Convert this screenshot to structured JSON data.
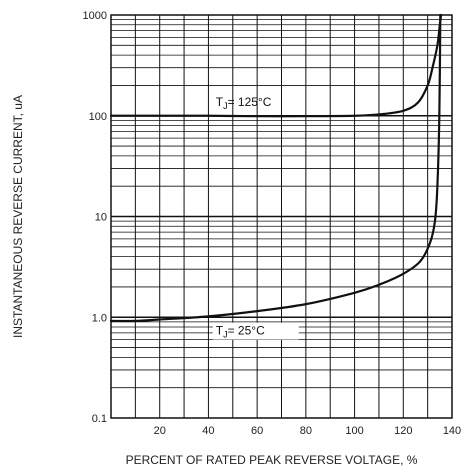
{
  "chart_data": {
    "type": "line",
    "xlabel": "PERCENT OF RATED PEAK REVERSE VOLTAGE, %",
    "ylabel": "INSTANTANEOUS REVERSE CURRENT, uA",
    "xlim": [
      0,
      140
    ],
    "ylim": [
      0.1,
      1000
    ],
    "yscale": "log",
    "grid": true,
    "x_ticks": [
      "20",
      "40",
      "60",
      "80",
      "100",
      "120",
      "140"
    ],
    "y_ticks": [
      "0.1",
      "1.0",
      "10",
      "100",
      "1000"
    ],
    "annotations": [
      {
        "prefix": "T",
        "sub": "J",
        "text": "= 125°C"
      },
      {
        "prefix": "T",
        "sub": "J",
        "text": "= 25°C"
      }
    ],
    "series": [
      {
        "x": [
          0,
          20,
          40,
          60,
          80,
          100,
          110,
          120,
          126,
          130,
          132,
          134,
          135,
          135.5
        ],
        "y": [
          100,
          100,
          100,
          99,
          99,
          100,
          103,
          112,
          135,
          200,
          300,
          500,
          800,
          1000
        ]
      },
      {
        "x": [
          0,
          10,
          20,
          40,
          60,
          80,
          100,
          110,
          120,
          127,
          131,
          133,
          134,
          134.8,
          135.2
        ],
        "y": [
          0.92,
          0.92,
          0.95,
          1.02,
          1.15,
          1.35,
          1.75,
          2.1,
          2.7,
          3.6,
          5.5,
          9,
          20,
          100,
          1000
        ]
      }
    ]
  }
}
